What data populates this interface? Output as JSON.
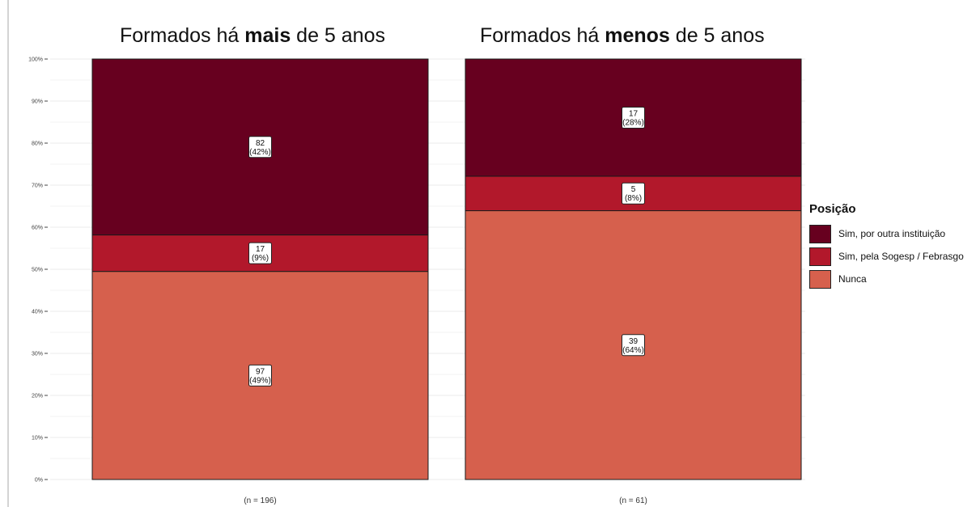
{
  "chart_data": {
    "type": "bar",
    "stacked": true,
    "ylim": [
      0,
      100
    ],
    "y_ticks": [
      "0%",
      "10%",
      "20%",
      "30%",
      "40%",
      "50%",
      "60%",
      "70%",
      "80%",
      "90%",
      "100%"
    ],
    "grid": true,
    "legend_position": "right",
    "panels": [
      {
        "title_pre": "Formados há ",
        "title_bold": "mais",
        "title_post": " de 5 anos",
        "n_label": "(n = 196)",
        "segments": [
          {
            "series": "Nunca",
            "count": "97",
            "pct_label": "(49%)",
            "value": 49.49
          },
          {
            "series": "Sim, pela Sogesp / Febrasgo",
            "count": "17",
            "pct_label": "(9%)",
            "value": 8.67
          },
          {
            "series": "Sim, por outra instituição",
            "count": "82",
            "pct_label": "(42%)",
            "value": 41.84
          }
        ]
      },
      {
        "title_pre": "Formados há ",
        "title_bold": "menos",
        "title_post": " de 5 anos",
        "n_label": "(n = 61)",
        "segments": [
          {
            "series": "Nunca",
            "count": "39",
            "pct_label": "(64%)",
            "value": 63.93
          },
          {
            "series": "Sim, pela Sogesp / Febrasgo",
            "count": "5",
            "pct_label": "(8%)",
            "value": 8.2
          },
          {
            "series": "Sim, por outra instituição",
            "count": "17",
            "pct_label": "(28%)",
            "value": 27.87
          }
        ]
      }
    ],
    "legend": {
      "title": "Posição",
      "items": [
        {
          "label": "Sim, por outra instituição",
          "color": "#67001f"
        },
        {
          "label": "Sim, pela Sogesp / Febrasgo",
          "color": "#b2182b"
        },
        {
          "label": "Nunca",
          "color": "#d6604d"
        }
      ]
    }
  }
}
